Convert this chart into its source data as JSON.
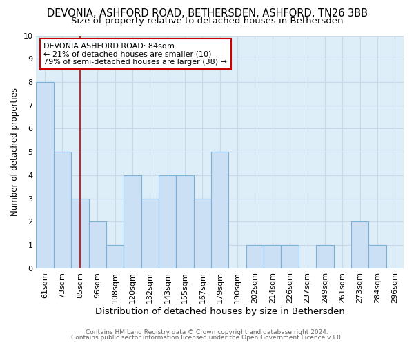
{
  "title": "DEVONIA, ASHFORD ROAD, BETHERSDEN, ASHFORD, TN26 3BB",
  "subtitle": "Size of property relative to detached houses in Bethersden",
  "xlabel": "Distribution of detached houses by size in Bethersden",
  "ylabel": "Number of detached properties",
  "categories": [
    "61sqm",
    "73sqm",
    "85sqm",
    "96sqm",
    "108sqm",
    "120sqm",
    "132sqm",
    "143sqm",
    "155sqm",
    "167sqm",
    "179sqm",
    "190sqm",
    "202sqm",
    "214sqm",
    "226sqm",
    "237sqm",
    "249sqm",
    "261sqm",
    "273sqm",
    "284sqm",
    "296sqm"
  ],
  "values": [
    8,
    5,
    3,
    2,
    1,
    4,
    3,
    4,
    4,
    3,
    5,
    0,
    1,
    1,
    1,
    0,
    1,
    0,
    2,
    1,
    0
  ],
  "bar_color": "#cce0f5",
  "bar_edge_color": "#7ab0d8",
  "bar_linewidth": 0.8,
  "vline_x_index": 2,
  "vline_color": "#cc0000",
  "vline_linewidth": 1.2,
  "annotation_text": "DEVONIA ASHFORD ROAD: 84sqm\n← 21% of detached houses are smaller (10)\n79% of semi-detached houses are larger (38) →",
  "annotation_box_color": "#ffffff",
  "annotation_box_edge_color": "#cc0000",
  "annotation_fontsize": 8.0,
  "ylim": [
    0,
    10
  ],
  "yticks": [
    0,
    1,
    2,
    3,
    4,
    5,
    6,
    7,
    8,
    9,
    10
  ],
  "grid_color": "#c8d8e8",
  "bg_color": "#ddeef8",
  "fig_bg_color": "#ffffff",
  "title_fontsize": 10.5,
  "subtitle_fontsize": 9.5,
  "xlabel_fontsize": 9.5,
  "ylabel_fontsize": 8.5,
  "tick_fontsize": 8,
  "footer_line1": "Contains HM Land Registry data © Crown copyright and database right 2024.",
  "footer_line2": "Contains public sector information licensed under the Open Government Licence v3.0.",
  "footer_fontsize": 6.5
}
